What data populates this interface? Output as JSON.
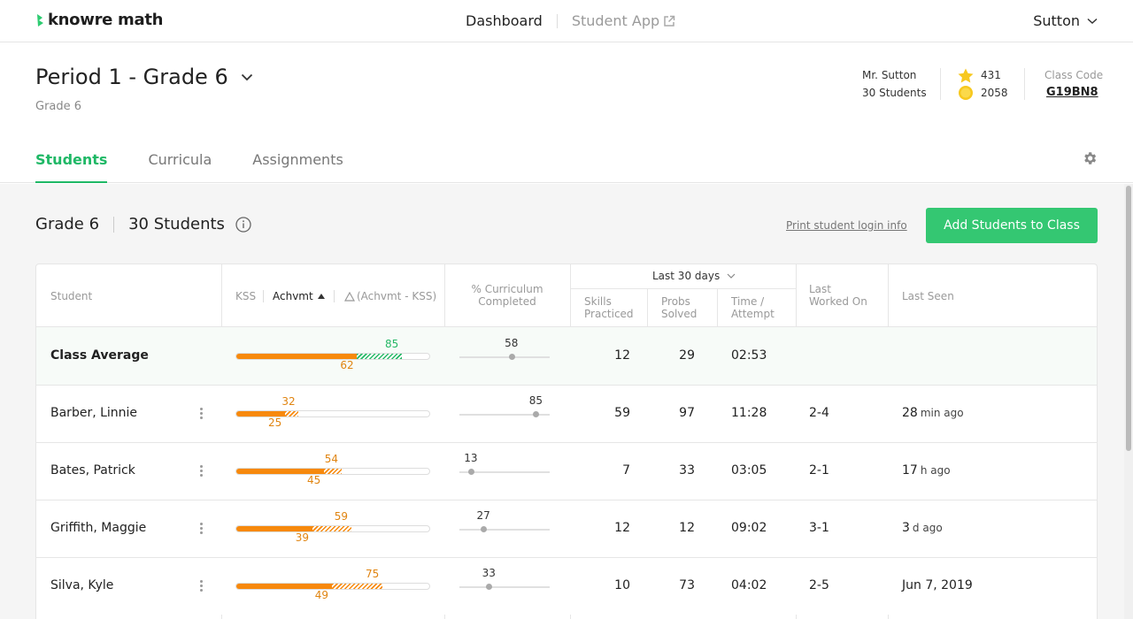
{
  "nav": {
    "brand": "knowre math",
    "dashboard": "Dashboard",
    "student_app": "Student App",
    "user": "Sutton"
  },
  "class": {
    "title": "Period 1 - Grade 6",
    "subtitle": "Grade 6",
    "teacher": "Mr. Sutton",
    "students_count": "30 Students",
    "stars": "431",
    "coins": "2058",
    "code_label": "Class Code",
    "code": "G19BN8"
  },
  "tabs": [
    "Students",
    "Curricula",
    "Assignments"
  ],
  "section": {
    "grade": "Grade 6",
    "students": "30 Students",
    "print_link": "Print student login info",
    "add_button": "Add Students to Class"
  },
  "table": {
    "headers": {
      "student": "Student",
      "kss": "KSS",
      "achvmt": "Achvmt",
      "delta": "(Achvmt - KSS)",
      "curriculum": "% Curriculum Completed",
      "period": "Last 30 days",
      "skills": "Skills Practiced",
      "probs": "Probs Solved",
      "time": "Time / Attempt",
      "last_worked": "Last Worked On",
      "last_seen": "Last Seen"
    },
    "rows": [
      {
        "name": "Class Average",
        "kss": 62,
        "achv": 85,
        "curr": 58,
        "skills": "12",
        "probs": "29",
        "time": "02:53",
        "worked": "",
        "seen_num": "",
        "seen_unit": "",
        "average": true
      },
      {
        "name": "Barber, Linnie",
        "kss": 25,
        "achv": 32,
        "curr": 85,
        "skills": "59",
        "probs": "97",
        "time": "11:28",
        "worked": "2-4",
        "seen_num": "28",
        "seen_unit": "min ago"
      },
      {
        "name": "Bates, Patrick",
        "kss": 45,
        "achv": 54,
        "curr": 13,
        "skills": "7",
        "probs": "33",
        "time": "03:05",
        "worked": "2-1",
        "seen_num": "17",
        "seen_unit": "h ago"
      },
      {
        "name": "Griffith, Maggie",
        "kss": 39,
        "achv": 59,
        "curr": 27,
        "skills": "12",
        "probs": "12",
        "time": "09:02",
        "worked": "3-1",
        "seen_num": "3",
        "seen_unit": "d ago"
      },
      {
        "name": "Silva, Kyle",
        "kss": 49,
        "achv": 75,
        "curr": 33,
        "skills": "10",
        "probs": "73",
        "time": "04:02",
        "worked": "2-5",
        "seen_num": "Jun 7, 2019",
        "seen_unit": ""
      }
    ]
  },
  "colors": {
    "accent": "#34c772",
    "kss": "#f7890c",
    "gap_green": "#26b866"
  }
}
